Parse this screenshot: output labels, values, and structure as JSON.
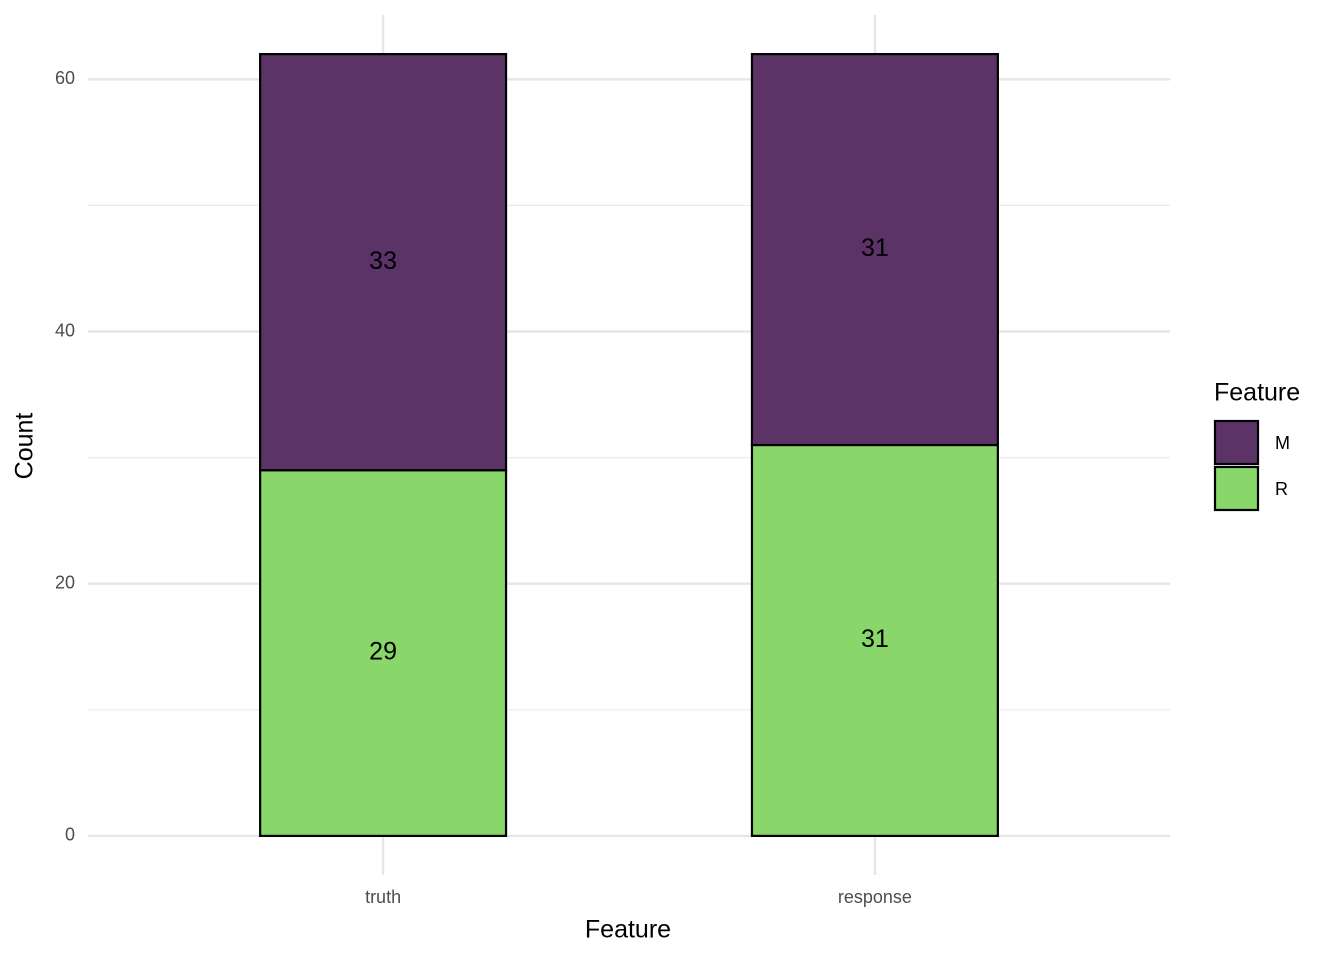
{
  "chart_data": {
    "type": "stacked_bar",
    "x_label": "Feature",
    "y_label": "Count",
    "categories": [
      "truth",
      "response"
    ],
    "series": [
      {
        "name": "M",
        "color": "#5b3366",
        "values": [
          33,
          31
        ]
      },
      {
        "name": "R",
        "color": "#89d66a",
        "values": [
          29,
          31
        ]
      }
    ],
    "ylim": [
      -3.1,
      65.1
    ],
    "yticks": [
      0,
      20,
      40,
      60
    ],
    "minor_yticks": [
      10,
      30,
      50
    ],
    "grid": true,
    "legend_title": "Feature",
    "legend_position": "right"
  }
}
